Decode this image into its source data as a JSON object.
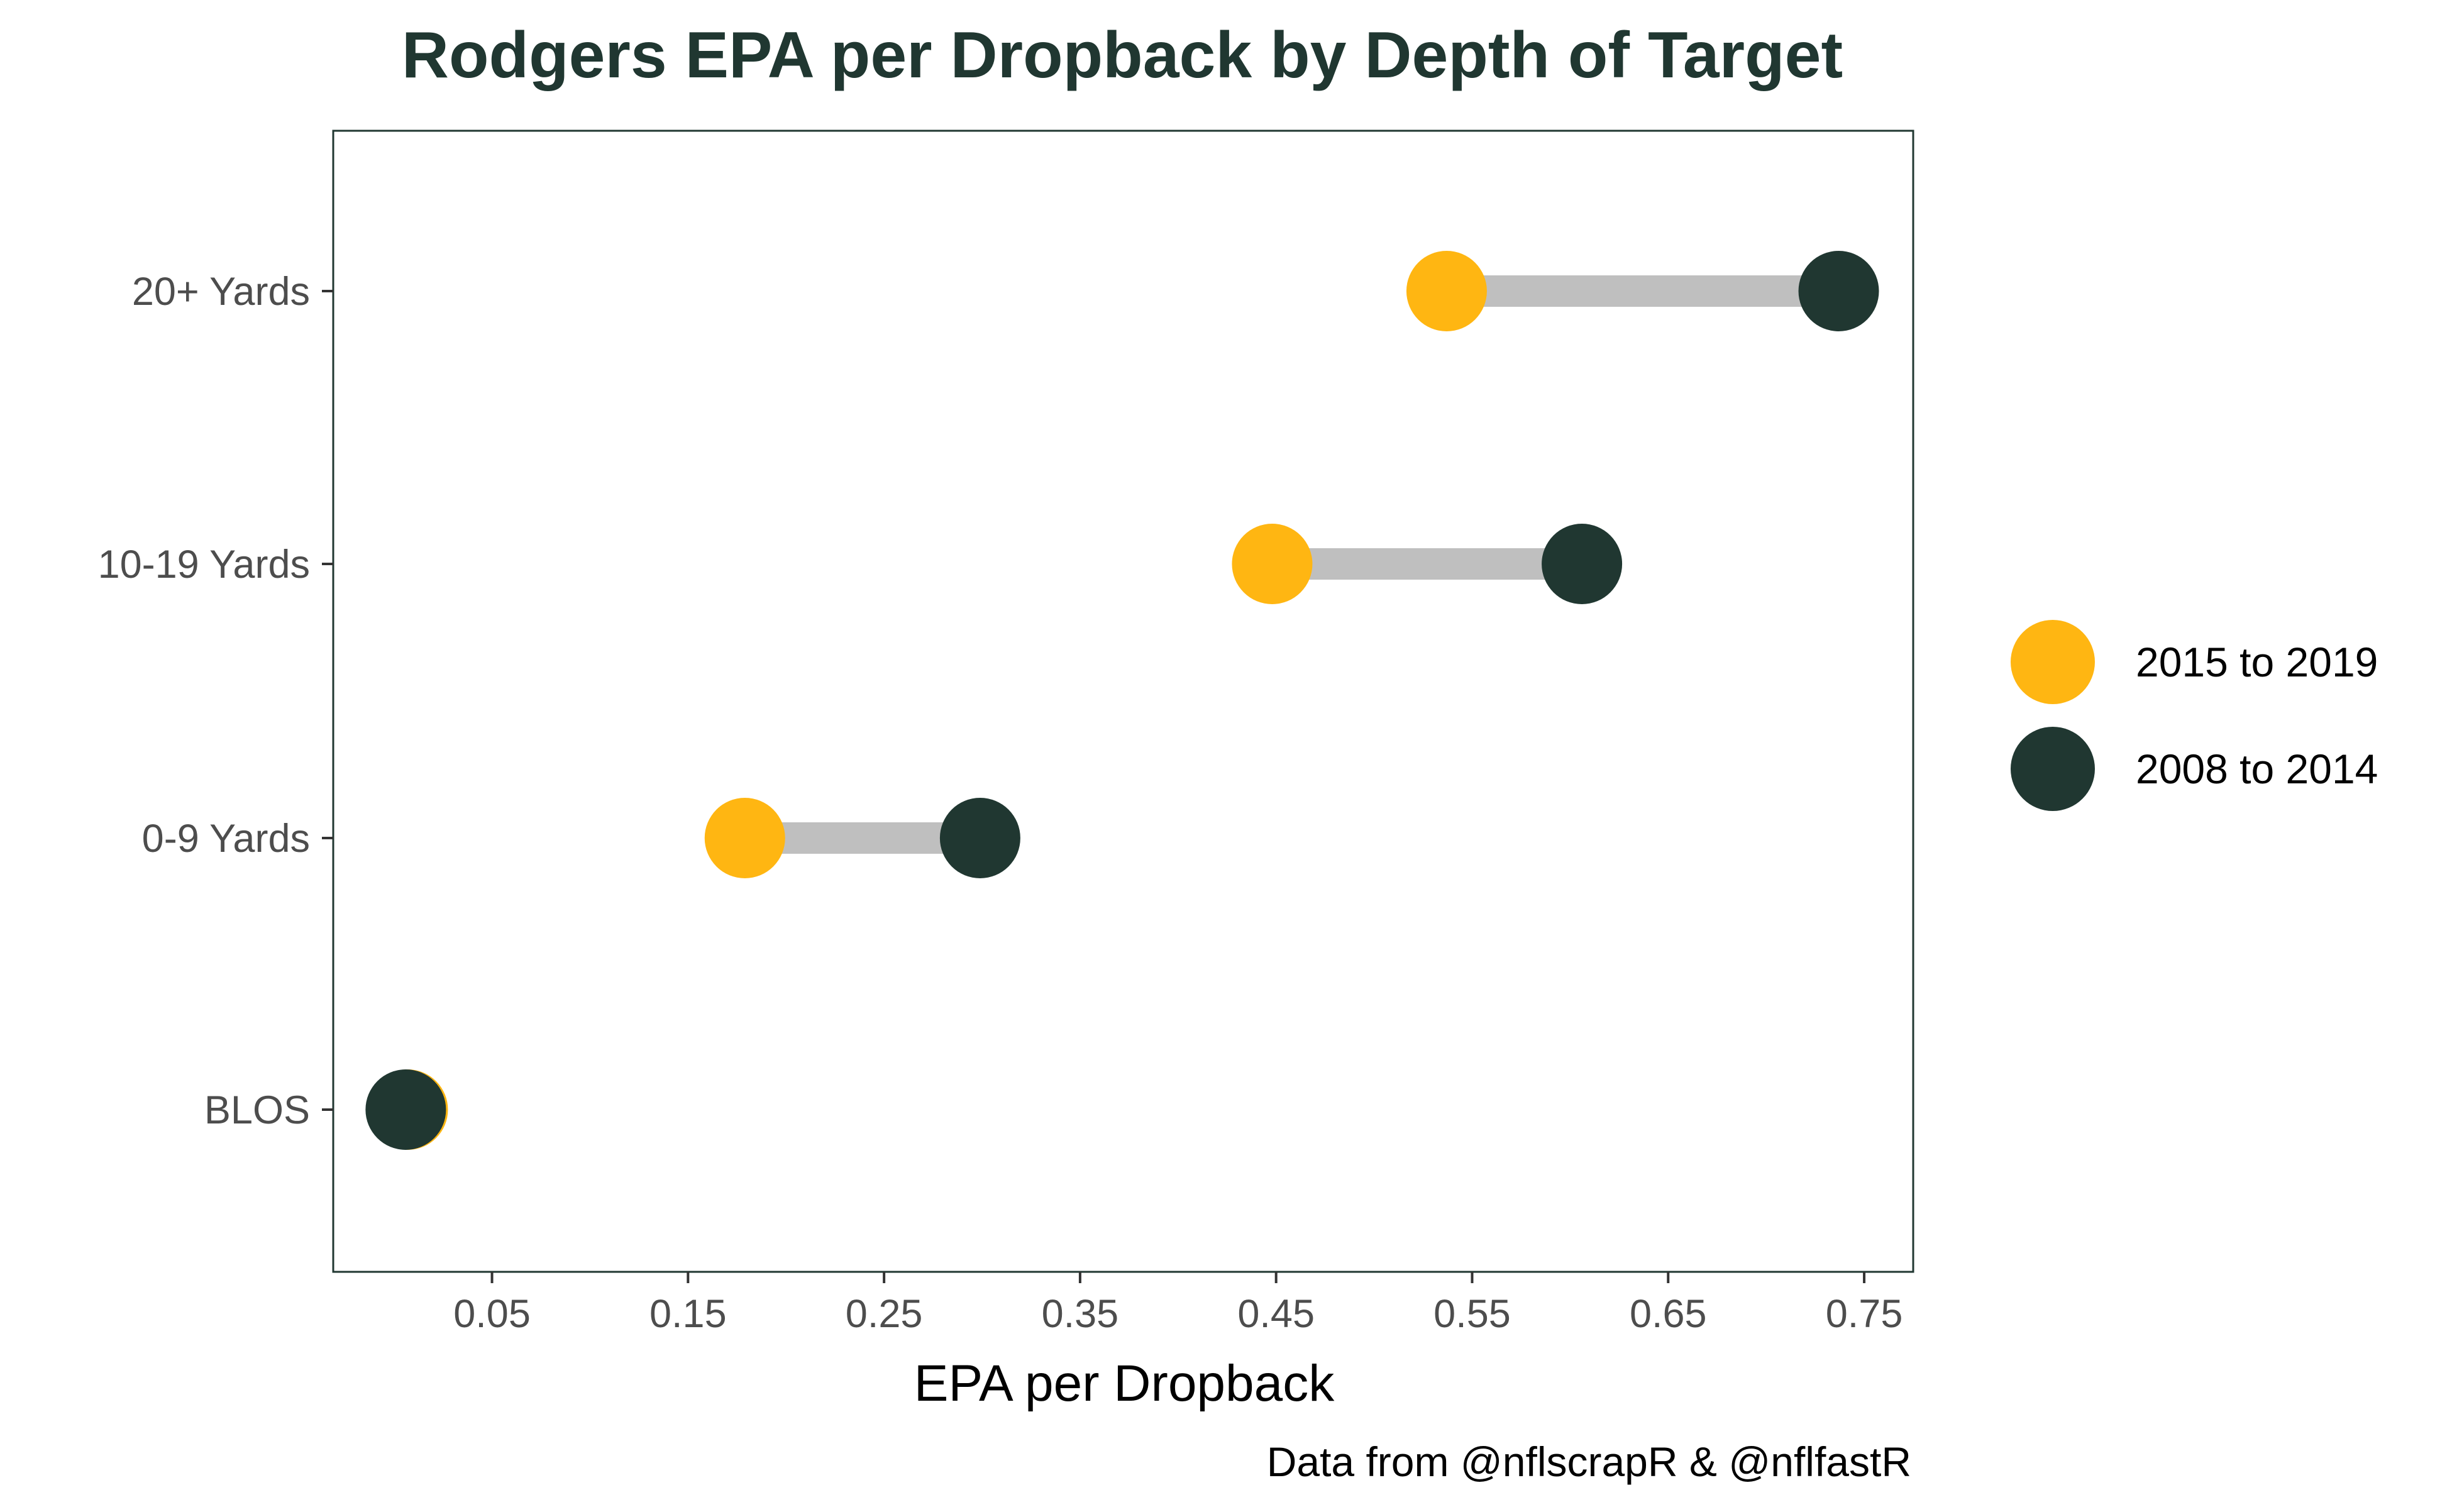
{
  "chart_data": {
    "type": "dumbbell",
    "title": "Rodgers EPA per Dropback by Depth of Target",
    "xlabel": "EPA per Dropback",
    "ylabel": "",
    "caption": "Data from @nflscrapR & @nflfastR",
    "xlim": [
      -0.031,
      0.775
    ],
    "xticks": [
      0.05,
      0.15,
      0.25,
      0.35,
      0.45,
      0.55,
      0.65,
      0.75
    ],
    "xtick_labels": [
      "0.05",
      "0.15",
      "0.25",
      "0.35",
      "0.45",
      "0.55",
      "0.65",
      "0.75"
    ],
    "categories": [
      "BLOS",
      "0-9 Yards",
      "10-19 Yards",
      "20+ Yards"
    ],
    "series": [
      {
        "name": "2015 to 2019",
        "color": "#FFB612",
        "values": [
          0.007,
          0.179,
          0.448,
          0.537
        ]
      },
      {
        "name": "2008 to 2014",
        "color": "#203731",
        "values": [
          0.006,
          0.299,
          0.606,
          0.737
        ]
      }
    ],
    "connector_color": "#BFBFBF",
    "legend_position": "right",
    "grid": false,
    "title_color": "#203731",
    "panel_border_color": "#203731"
  }
}
